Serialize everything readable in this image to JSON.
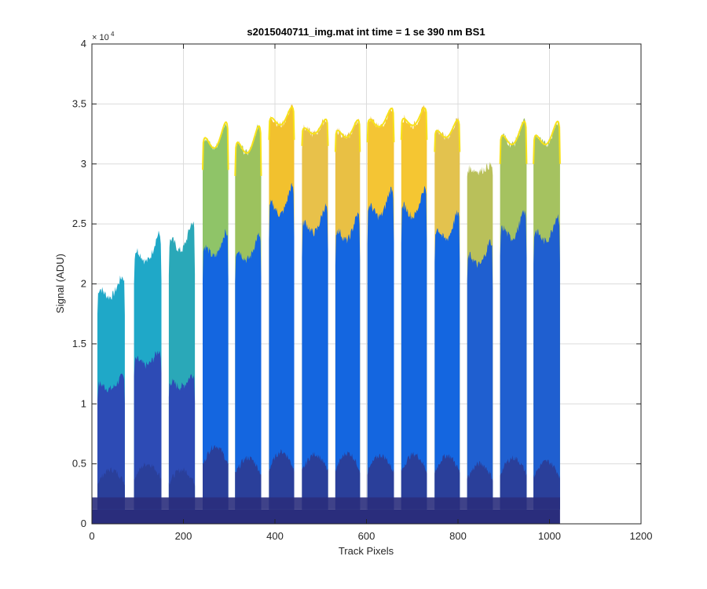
{
  "chart_data": {
    "type": "area",
    "title": "s2015040711_img.mat int time = 1 se  390 nm BS1",
    "xlabel": "Track Pixels",
    "ylabel": "Signal (ADU)",
    "xlim": [
      0,
      1200
    ],
    "ylim": [
      0,
      40000
    ],
    "x_ticks": [
      0,
      200,
      400,
      600,
      800,
      1000,
      1200
    ],
    "x_tick_labels": [
      "0",
      "200",
      "400",
      "600",
      "800",
      "1000",
      "1200"
    ],
    "y_ticks": [
      0,
      5000,
      10000,
      15000,
      20000,
      25000,
      30000,
      35000,
      40000
    ],
    "y_tick_labels": [
      "0",
      "0.5",
      "1",
      "1.5",
      "2",
      "2.5",
      "3",
      "3.5",
      "4"
    ],
    "y_exponent_base": "× 10",
    "y_exponent": "4",
    "grid": true,
    "baseline": 1200,
    "tracks": [
      {
        "x": [
          12,
          72
        ],
        "peak": 21000,
        "min": 17500,
        "mid": 12500,
        "low": 4500,
        "color_top": "#1fa8c8",
        "color_mid": "#2d4bb5"
      },
      {
        "x": [
          92,
          152
        ],
        "peak": 24700,
        "min": 20000,
        "mid": 14700,
        "low": 5000,
        "color_top": "#1fa8c8",
        "color_mid": "#2d4bb5"
      },
      {
        "x": [
          168,
          225
        ],
        "peak": 25700,
        "min": 20800,
        "mid": 12700,
        "low": 4500,
        "color_top": "#2aa8b8",
        "color_mid": "#2d4bb5"
      },
      {
        "x": [
          242,
          298
        ],
        "peak": 34000,
        "min": 29500,
        "mid": 24800,
        "low": 6500,
        "color_top": "#8fc468",
        "color_mid": "#1466e0"
      },
      {
        "x": [
          313,
          370
        ],
        "peak": 33700,
        "min": 29000,
        "mid": 24500,
        "low": 5500,
        "color_top": "#9cc25e",
        "color_mid": "#1466e0"
      },
      {
        "x": [
          387,
          442
        ],
        "peak": 35100,
        "min": 32000,
        "mid": 28700,
        "low": 6000,
        "color_top": "#f2c12e",
        "color_mid": "#1466e0"
      },
      {
        "x": [
          459,
          516
        ],
        "peak": 34000,
        "min": 31500,
        "mid": 27000,
        "low": 5800,
        "color_top": "#e8c14a",
        "color_mid": "#1466e0"
      },
      {
        "x": [
          532,
          586
        ],
        "peak": 34000,
        "min": 31000,
        "mid": 26300,
        "low": 5900,
        "color_top": "#e9c044",
        "color_mid": "#1466e0"
      },
      {
        "x": [
          602,
          660
        ],
        "peak": 35000,
        "min": 31800,
        "mid": 28500,
        "low": 5700,
        "color_top": "#f4c534",
        "color_mid": "#1466e0"
      },
      {
        "x": [
          676,
          732
        ],
        "peak": 35000,
        "min": 32000,
        "mid": 28500,
        "low": 5800,
        "color_top": "#f5c632",
        "color_mid": "#1466e0"
      },
      {
        "x": [
          749,
          804
        ],
        "peak": 34000,
        "min": 31000,
        "mid": 26400,
        "low": 5700,
        "color_top": "#e3c24e",
        "color_mid": "#1466e0"
      },
      {
        "x": [
          820,
          876
        ],
        "peak": 30000,
        "min": 29000,
        "mid": 24000,
        "low": 5000,
        "color_top": "#b9c05a",
        "color_mid": "#1f5fd0"
      },
      {
        "x": [
          892,
          950
        ],
        "peak": 34000,
        "min": 30000,
        "mid": 26500,
        "low": 5500,
        "color_top": "#a5c260",
        "color_mid": "#1f5fd0"
      },
      {
        "x": [
          965,
          1023
        ],
        "peak": 34000,
        "min": 30000,
        "mid": 26200,
        "low": 5200,
        "color_top": "#a5c260",
        "color_mid": "#1f5fd0"
      }
    ],
    "colors": {
      "base": "#2a2d7c",
      "low": "#2a3f9a",
      "gold_edge": "#f7e21a",
      "grid": "#dcdcdc",
      "axis": "#262626"
    }
  }
}
